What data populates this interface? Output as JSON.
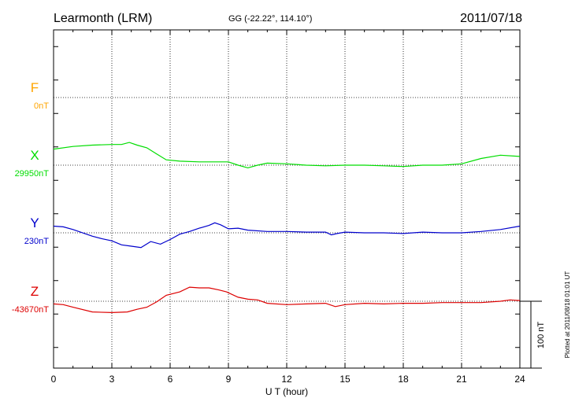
{
  "header": {
    "station": "Learmonth (LRM)",
    "coords": "GG (-22.22°, 114.10°)",
    "date": "2011/07/18"
  },
  "footer": {
    "plotted": "Plotted at 2011/08/18 01:01 UT",
    "scale_label": "100 nT"
  },
  "colors": {
    "F": "#ffa500",
    "X": "#00dd00",
    "Y": "#0000cc",
    "Z": "#dd0000",
    "axis": "#000000"
  },
  "chart_data": {
    "type": "line",
    "xlabel": "U T (hour)",
    "xlim": [
      0,
      24
    ],
    "xticks": [
      "0",
      "3",
      "6",
      "9",
      "12",
      "15",
      "18",
      "21",
      "24"
    ],
    "scale_bar_nT": 100,
    "series": [
      {
        "name": "F",
        "baseline_label": "0nT",
        "x": [],
        "values": []
      },
      {
        "name": "X",
        "baseline_label": "29950nT",
        "x": [
          0,
          1,
          2,
          3,
          3.5,
          3.9,
          4.3,
          4.8,
          5.3,
          5.8,
          6.5,
          7.5,
          8.5,
          9.0,
          9.5,
          10.0,
          10.5,
          11.0,
          12.0,
          13.0,
          14.0,
          15.0,
          16.0,
          17.0,
          18.0,
          19.0,
          20.0,
          21.0,
          22.0,
          23.0,
          24.0
        ],
        "values": [
          24,
          28,
          30,
          31,
          31,
          34,
          30,
          26,
          17,
          8,
          6,
          5,
          5,
          5,
          0,
          -4,
          0,
          3,
          2,
          0,
          -1,
          0,
          0,
          -1,
          -2,
          0,
          0,
          2,
          10,
          15,
          13
        ]
      },
      {
        "name": "Y",
        "baseline_label": "230nT",
        "x": [
          0,
          0.5,
          1,
          2,
          2.5,
          3,
          3.5,
          4,
          4.5,
          5,
          5.5,
          6,
          6.5,
          7,
          7.5,
          8,
          8.3,
          8.6,
          9,
          9.5,
          10,
          11,
          12,
          13,
          14,
          14.3,
          14.6,
          15,
          16,
          17,
          18,
          19,
          20,
          21,
          22,
          23,
          24
        ],
        "values": [
          10,
          9,
          5,
          -5,
          -9,
          -12,
          -18,
          -20,
          -22,
          -13,
          -17,
          -10,
          -2,
          2,
          7,
          11,
          15,
          12,
          6,
          7,
          4,
          2,
          2,
          1,
          1,
          -3,
          -1,
          1,
          0,
          0,
          -1,
          1,
          0,
          0,
          2,
          5,
          10
        ]
      },
      {
        "name": "Z",
        "baseline_label": "-43670nT",
        "x": [
          0,
          0.5,
          1,
          2,
          3,
          3.8,
          4.3,
          4.8,
          5.3,
          5.8,
          6.5,
          7.0,
          7.5,
          8.0,
          8.5,
          8.9,
          9.5,
          10.0,
          10.5,
          11,
          12,
          13,
          14,
          14.5,
          15,
          16,
          17,
          18,
          19,
          20,
          21,
          22,
          23,
          23.5,
          24
        ],
        "values": [
          -4,
          -5,
          -9,
          -16,
          -17,
          -16,
          -12,
          -9,
          -1,
          9,
          14,
          21,
          20,
          20,
          17,
          14,
          6,
          3,
          2,
          -3,
          -5,
          -4,
          -3,
          -8,
          -5,
          -3,
          -4,
          -3,
          -3,
          -2,
          -2,
          -2,
          0,
          2,
          1
        ]
      }
    ]
  }
}
